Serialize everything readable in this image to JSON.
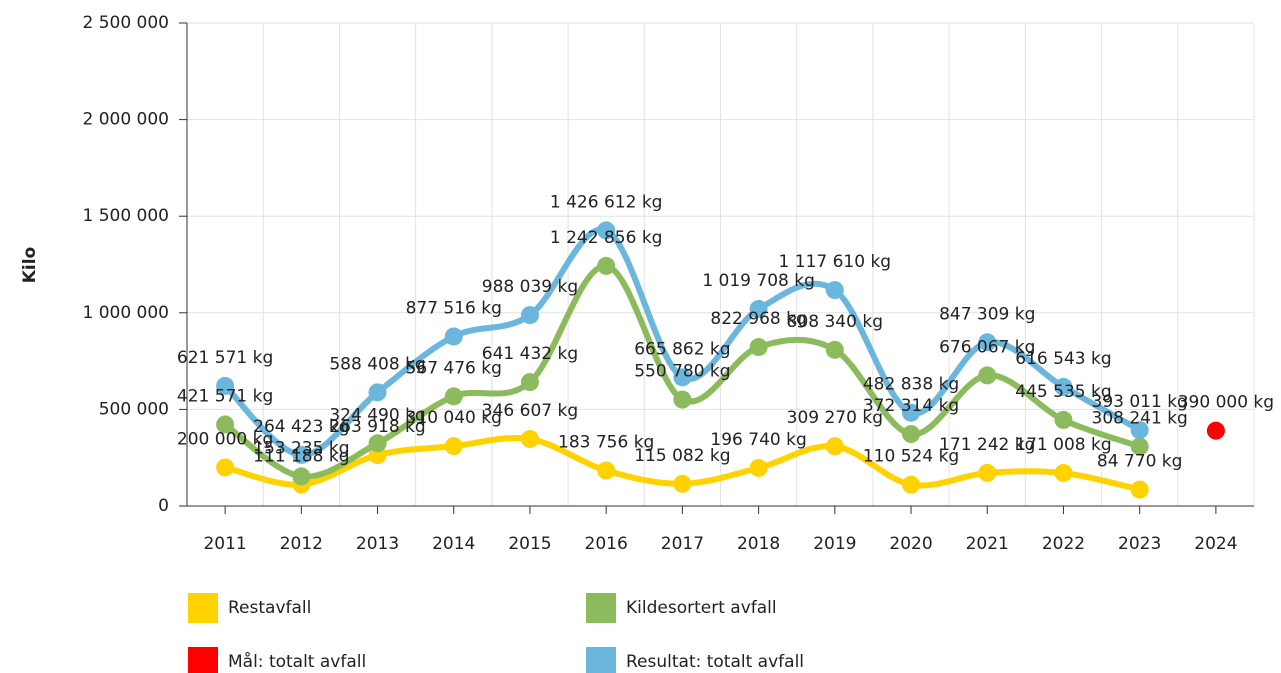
{
  "chart_data": {
    "type": "line",
    "y_label": "Kilo",
    "categories": [
      "2011",
      "2012",
      "2013",
      "2014",
      "2015",
      "2016",
      "2017",
      "2018",
      "2019",
      "2020",
      "2021",
      "2022",
      "2023",
      "2024"
    ],
    "ylim": [
      0,
      2500000
    ],
    "yticks": [
      0,
      {
        "value": 500000,
        "label": "500 000"
      },
      {
        "value": 1000000,
        "label": "1 000 000"
      },
      {
        "value": 1500000,
        "label": "1 500 000"
      },
      {
        "value": 2000000,
        "label": "2 000 000"
      },
      {
        "value": 2500000,
        "label": "2 500 000"
      }
    ],
    "grid": true,
    "series": [
      {
        "name": "Restavfall",
        "color": "#ffd200",
        "values": [
          200000,
          111188,
          263918,
          310040,
          346607,
          183756,
          115082,
          196740,
          309270,
          110524,
          171242,
          171008,
          84770,
          null
        ],
        "value_labels": [
          "200 000 kg",
          "111 188 kg",
          "263 918 kg",
          "310 040 kg",
          "346 607 kg",
          "183 756 kg",
          "115 082 kg",
          "196 740 kg",
          "309 270 kg",
          "110 524 kg",
          "171 242 kg",
          "171 008 kg",
          "84 770 kg",
          null
        ]
      },
      {
        "name": "Kildesortert avfall",
        "color": "#8cbb5e",
        "values": [
          421571,
          153235,
          324490,
          567476,
          641432,
          1242856,
          550780,
          822968,
          808340,
          372314,
          676067,
          445535,
          308241,
          null
        ],
        "value_labels": [
          "421 571 kg",
          "153 235 kg",
          "324 490 kg",
          "567 476 kg",
          "641 432 kg",
          "1 242 856 kg",
          "550 780 kg",
          "822 968 kg",
          "808 340 kg",
          "372 314 kg",
          "676 067 kg",
          "445 535 kg",
          "308 241 kg",
          null
        ]
      },
      {
        "name": "Mål: totalt avfall",
        "color": "#ff0000",
        "line": false,
        "values": [
          null,
          null,
          null,
          null,
          null,
          null,
          null,
          null,
          null,
          null,
          null,
          null,
          null,
          390000
        ],
        "value_labels": [
          null,
          null,
          null,
          null,
          null,
          null,
          null,
          null,
          null,
          null,
          null,
          null,
          null,
          "390 000 kg"
        ]
      },
      {
        "name": "Resultat: totalt avfall",
        "color": "#6ab6dc",
        "values": [
          621571,
          264423,
          588408,
          877516,
          988039,
          1426612,
          665862,
          1019708,
          1117610,
          482838,
          847309,
          616543,
          393011,
          null
        ],
        "value_labels": [
          "621 571 kg",
          "264 423 kg",
          "588 408 kg",
          "877 516 kg",
          "988 039 kg",
          "1 426 612 kg",
          "665 862 kg",
          "1 019 708 kg",
          "1 117 610 kg",
          "482 838 kg",
          "847 309 kg",
          "616 543 kg",
          "393 011 kg",
          null
        ]
      }
    ]
  }
}
